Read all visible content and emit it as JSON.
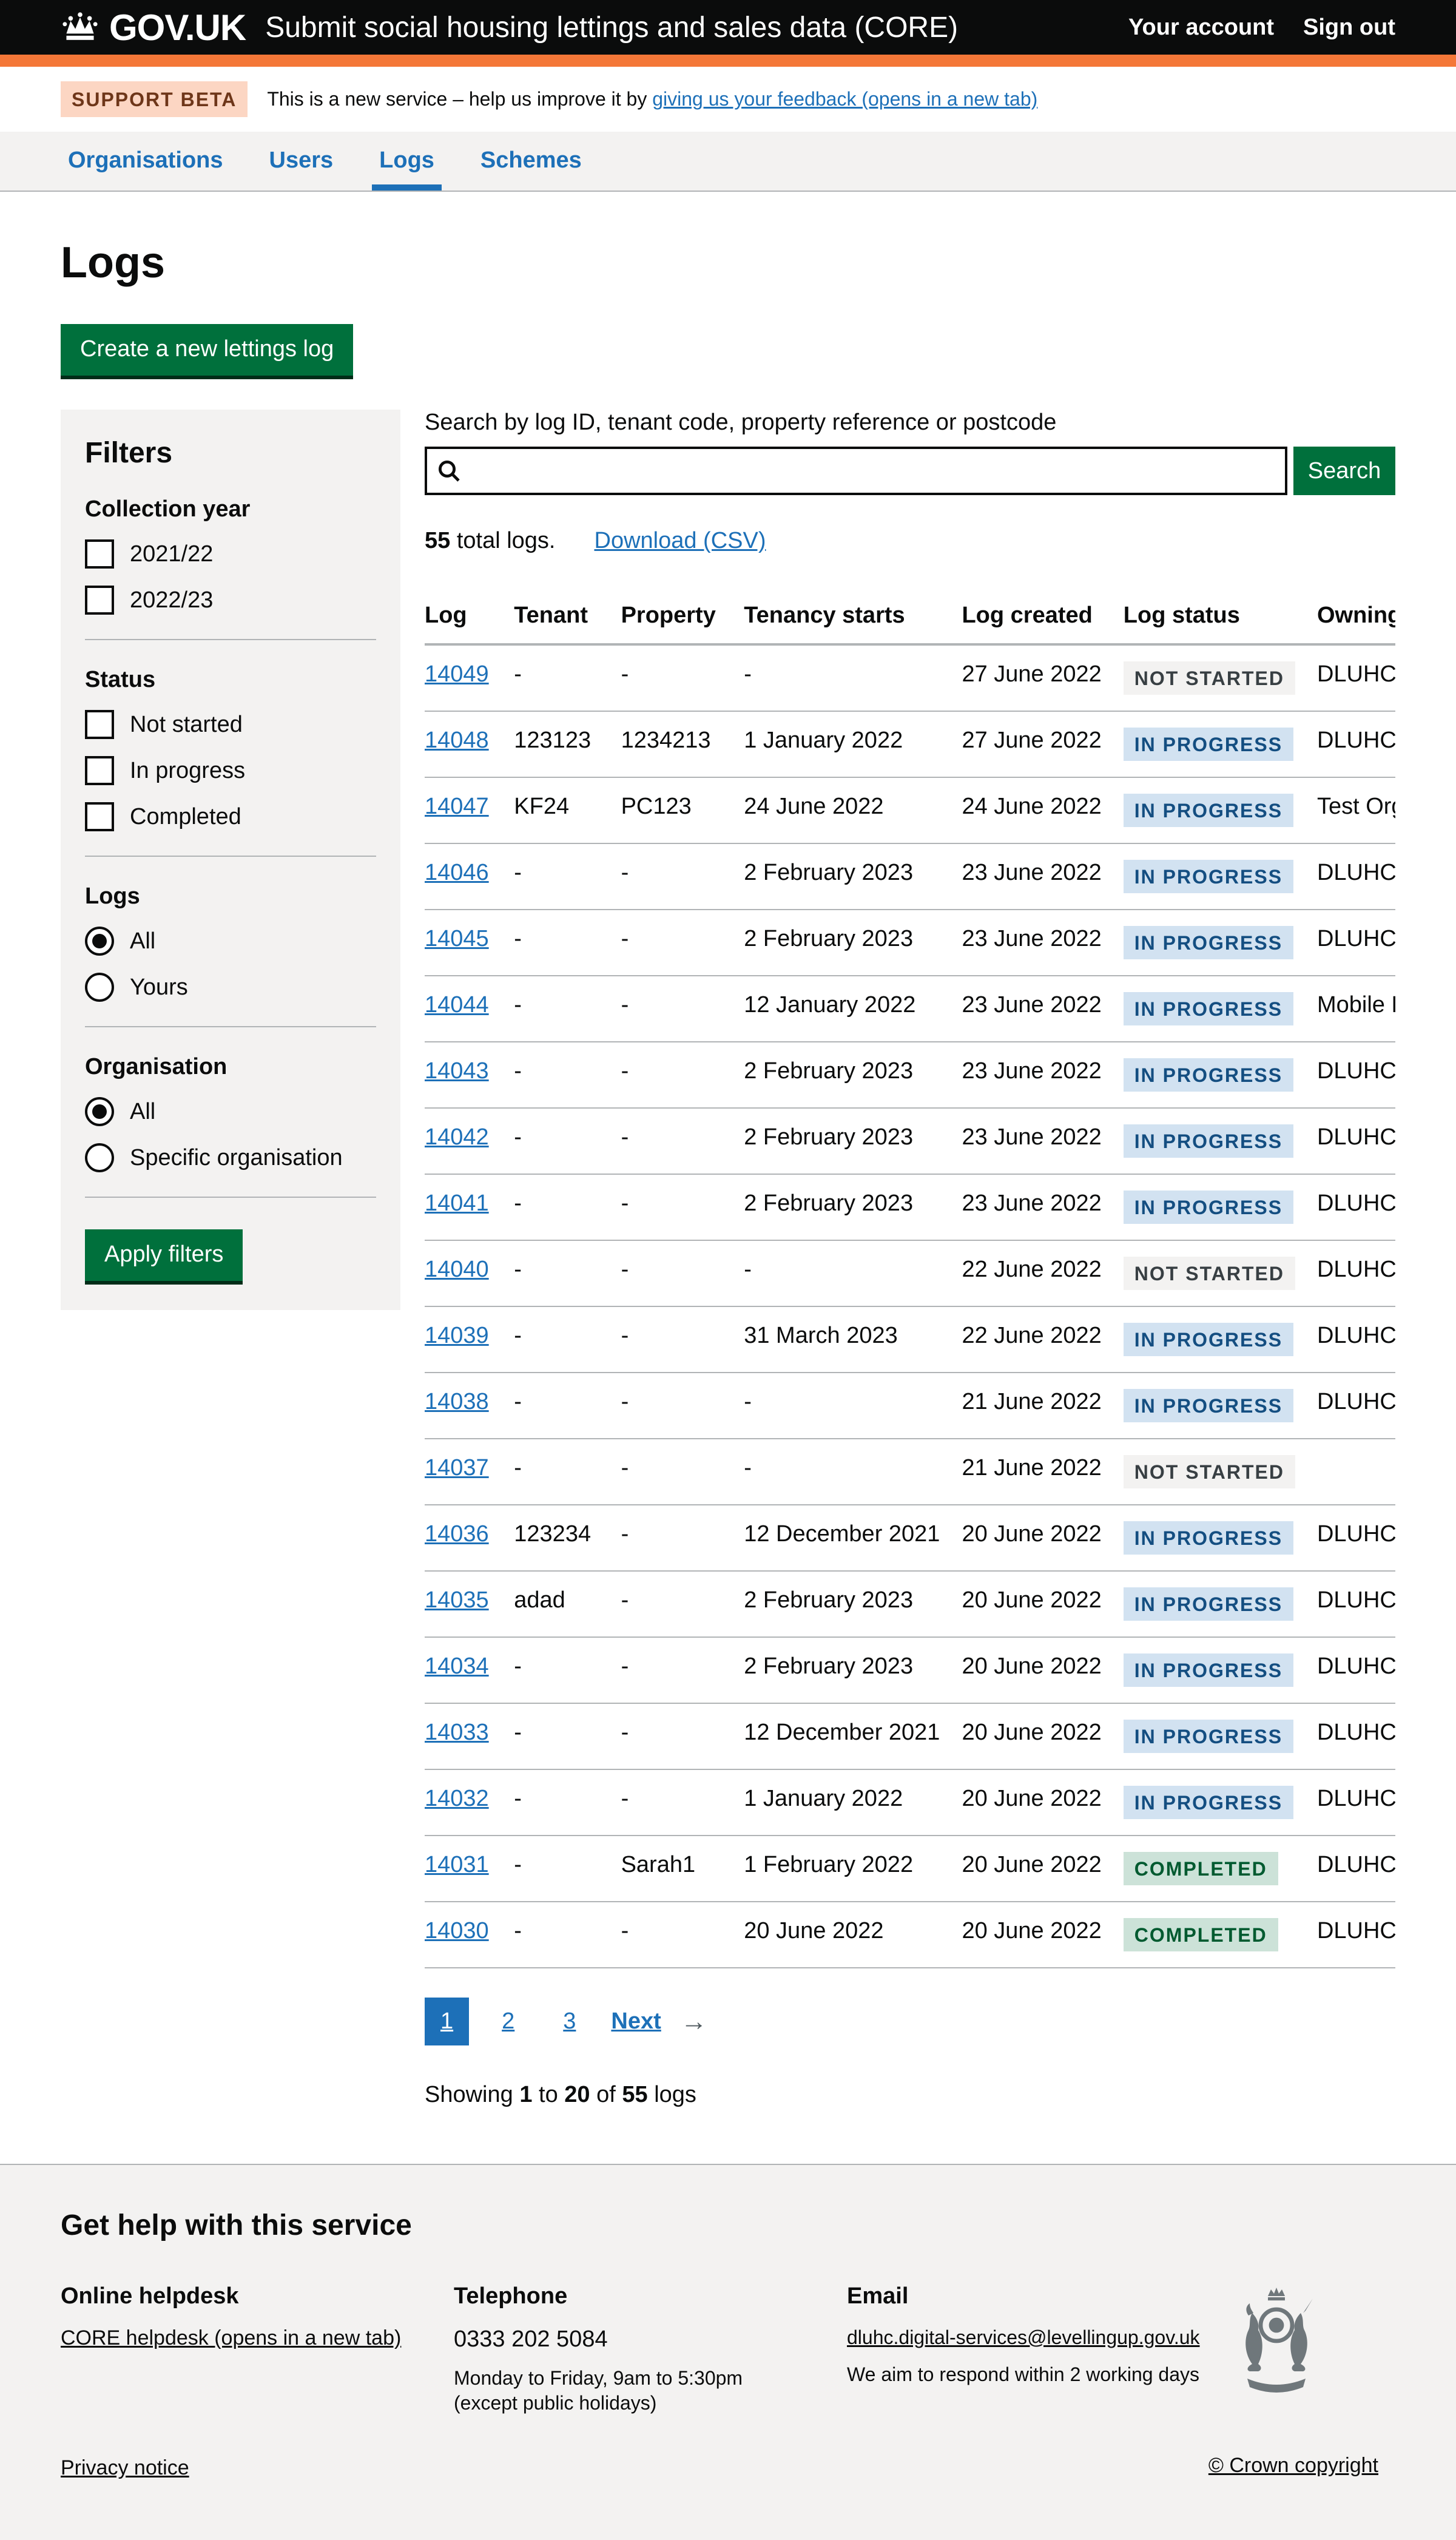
{
  "header": {
    "brand": "GOV.UK",
    "service_name": "Submit social housing lettings and sales data (CORE)",
    "links": [
      {
        "label": "Your account"
      },
      {
        "label": "Sign out"
      }
    ]
  },
  "phase_banner": {
    "tag": "SUPPORT BETA",
    "text": "This is a new service – help us improve it by ",
    "link": "giving us your feedback (opens in a new tab)"
  },
  "nav": {
    "items": [
      {
        "label": "Organisations",
        "active": false
      },
      {
        "label": "Users",
        "active": false
      },
      {
        "label": "Logs",
        "active": true
      },
      {
        "label": "Schemes",
        "active": false
      }
    ]
  },
  "page": {
    "title": "Logs",
    "create_button": "Create a new lettings log"
  },
  "filters": {
    "title": "Filters",
    "collection_year": {
      "label": "Collection year",
      "options": [
        "2021/22",
        "2022/23"
      ]
    },
    "status": {
      "label": "Status",
      "options": [
        "Not started",
        "In progress",
        "Completed"
      ]
    },
    "logs": {
      "label": "Logs",
      "options": [
        "All",
        "Yours"
      ],
      "selected": "All"
    },
    "organisation": {
      "label": "Organisation",
      "options": [
        "All",
        "Specific organisation"
      ],
      "selected": "All"
    },
    "apply_button": "Apply filters"
  },
  "search": {
    "label": "Search by log ID, tenant code, property reference or postcode",
    "value": "",
    "button": "Search"
  },
  "results": {
    "total": "55",
    "total_suffix": " total logs.",
    "download_link": "Download (CSV)"
  },
  "table": {
    "columns": [
      "Log",
      "Tenant",
      "Property",
      "Tenancy starts",
      "Log created",
      "Log status",
      "Owning organisation"
    ],
    "rows": [
      {
        "log": "14049",
        "tenant": "-",
        "property": "-",
        "tenancy_starts": "-",
        "log_created": "27 June 2022",
        "status": {
          "label": "NOT STARTED",
          "type": "grey"
        },
        "owning": "DLUHC"
      },
      {
        "log": "14048",
        "tenant": "123123",
        "property": "1234213",
        "tenancy_starts": "1 January 2022",
        "log_created": "27 June 2022",
        "status": {
          "label": "IN PROGRESS",
          "type": "blue"
        },
        "owning": "DLUHC"
      },
      {
        "log": "14047",
        "tenant": "KF24",
        "property": "PC123",
        "tenancy_starts": "24 June 2022",
        "log_created": "24 June 2022",
        "status": {
          "label": "IN PROGRESS",
          "type": "blue"
        },
        "owning": "Test Organisation"
      },
      {
        "log": "14046",
        "tenant": "-",
        "property": "-",
        "tenancy_starts": "2 February 2023",
        "log_created": "23 June 2022",
        "status": {
          "label": "IN PROGRESS",
          "type": "blue"
        },
        "owning": "DLUHC Test"
      },
      {
        "log": "14045",
        "tenant": "-",
        "property": "-",
        "tenancy_starts": "2 February 2023",
        "log_created": "23 June 2022",
        "status": {
          "label": "IN PROGRESS",
          "type": "blue"
        },
        "owning": "DLUHC Test"
      },
      {
        "log": "14044",
        "tenant": "-",
        "property": "-",
        "tenancy_starts": "12 January 2022",
        "log_created": "23 June 2022",
        "status": {
          "label": "IN PROGRESS",
          "type": "blue"
        },
        "owning": "Mobile Housing"
      },
      {
        "log": "14043",
        "tenant": "-",
        "property": "-",
        "tenancy_starts": "2 February 2023",
        "log_created": "23 June 2022",
        "status": {
          "label": "IN PROGRESS",
          "type": "blue"
        },
        "owning": "DLUHC Test"
      },
      {
        "log": "14042",
        "tenant": "-",
        "property": "-",
        "tenancy_starts": "2 February 2023",
        "log_created": "23 June 2022",
        "status": {
          "label": "IN PROGRESS",
          "type": "blue"
        },
        "owning": "DLUHC Test"
      },
      {
        "log": "14041",
        "tenant": "-",
        "property": "-",
        "tenancy_starts": "2 February 2023",
        "log_created": "23 June 2022",
        "status": {
          "label": "IN PROGRESS",
          "type": "blue"
        },
        "owning": "DLUHC"
      },
      {
        "log": "14040",
        "tenant": "-",
        "property": "-",
        "tenancy_starts": "-",
        "log_created": "22 June 2022",
        "status": {
          "label": "NOT STARTED",
          "type": "grey"
        },
        "owning": "DLUHC"
      },
      {
        "log": "14039",
        "tenant": "-",
        "property": "-",
        "tenancy_starts": "31 March 2023",
        "log_created": "22 June 2022",
        "status": {
          "label": "IN PROGRESS",
          "type": "blue"
        },
        "owning": "DLUHC Test"
      },
      {
        "log": "14038",
        "tenant": "-",
        "property": "-",
        "tenancy_starts": "-",
        "log_created": "21 June 2022",
        "status": {
          "label": "IN PROGRESS",
          "type": "blue"
        },
        "owning": "DLUHC"
      },
      {
        "log": "14037",
        "tenant": "-",
        "property": "-",
        "tenancy_starts": "-",
        "log_created": "21 June 2022",
        "status": {
          "label": "NOT STARTED",
          "type": "grey"
        },
        "owning": ""
      },
      {
        "log": "14036",
        "tenant": "123234",
        "property": "-",
        "tenancy_starts": "12 December 2021",
        "log_created": "20 June 2022",
        "status": {
          "label": "IN PROGRESS",
          "type": "blue"
        },
        "owning": "DLUHC Test"
      },
      {
        "log": "14035",
        "tenant": "adad",
        "property": "-",
        "tenancy_starts": "2 February 2023",
        "log_created": "20 June 2022",
        "status": {
          "label": "IN PROGRESS",
          "type": "blue"
        },
        "owning": "DLUHC Test"
      },
      {
        "log": "14034",
        "tenant": "-",
        "property": "-",
        "tenancy_starts": "2 February 2023",
        "log_created": "20 June 2022",
        "status": {
          "label": "IN PROGRESS",
          "type": "blue"
        },
        "owning": "DLUHC Test"
      },
      {
        "log": "14033",
        "tenant": "-",
        "property": "-",
        "tenancy_starts": "12 December 2021",
        "log_created": "20 June 2022",
        "status": {
          "label": "IN PROGRESS",
          "type": "blue"
        },
        "owning": "DLUHC Test"
      },
      {
        "log": "14032",
        "tenant": "-",
        "property": "-",
        "tenancy_starts": "1 January 2022",
        "log_created": "20 June 2022",
        "status": {
          "label": "IN PROGRESS",
          "type": "blue"
        },
        "owning": "DLUHC Test"
      },
      {
        "log": "14031",
        "tenant": "-",
        "property": "Sarah1",
        "tenancy_starts": "1 February 2022",
        "log_created": "20 June 2022",
        "status": {
          "label": "COMPLETED",
          "type": "green"
        },
        "owning": "DLUHC Test"
      },
      {
        "log": "14030",
        "tenant": "-",
        "property": "-",
        "tenancy_starts": "20 June 2022",
        "log_created": "20 June 2022",
        "status": {
          "label": "COMPLETED",
          "type": "green"
        },
        "owning": "DLUHC Test"
      }
    ]
  },
  "pagination": {
    "current": "1",
    "page2": "2",
    "page3": "3",
    "next_label": "Next",
    "next_arrow": "→"
  },
  "showing": {
    "prefix": "Showing ",
    "from": "1",
    "to_word": " to ",
    "to": "20",
    "of_word": " of ",
    "total": "55",
    "suffix": " logs"
  },
  "footer": {
    "heading": "Get help with this service",
    "online": {
      "title": "Online helpdesk",
      "link": "CORE helpdesk (opens in a new tab)"
    },
    "telephone": {
      "title": "Telephone",
      "number": "0333 202 5084",
      "line1": "Monday to Friday, 9am to 5:30pm",
      "line2": "(except public holidays)"
    },
    "email": {
      "title": "Email",
      "link": "dluhc.digital-services@levellingup.gov.uk",
      "line1": "We aim to respond within 2 working days"
    },
    "copyright": "© Crown copyright",
    "privacy": "Privacy notice"
  },
  "colors": {
    "header_bg": "#0b0c0c",
    "header_border_orange": "#f47738",
    "link_blue": "#1d70b8",
    "button_green": "#00703c",
    "panel_grey": "#f3f2f1",
    "tag_grey_bg": "#f3f2f1",
    "tag_grey_text": "#383f43",
    "tag_blue_bg": "#d2e2f1",
    "tag_blue_text": "#144e81",
    "tag_green_bg": "#cce2d8",
    "tag_green_text": "#005a30"
  }
}
